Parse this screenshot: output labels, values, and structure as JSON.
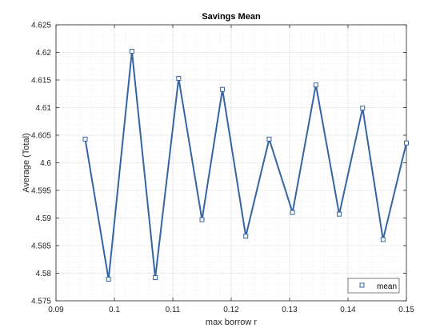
{
  "chart_data": {
    "type": "line",
    "title": "Savings Mean",
    "xlabel": "max borrow r",
    "ylabel": "Average (Total)",
    "xlim": [
      0.09,
      0.15
    ],
    "ylim": [
      4.575,
      4.625
    ],
    "xticks": [
      0.09,
      0.1,
      0.11,
      0.12,
      0.13,
      0.14,
      0.15
    ],
    "xtick_labels": [
      "0.09",
      "0.1",
      "0.11",
      "0.12",
      "0.13",
      "0.14",
      "0.15"
    ],
    "yticks": [
      4.575,
      4.58,
      4.585,
      4.59,
      4.595,
      4.6,
      4.605,
      4.61,
      4.615,
      4.62,
      4.625
    ],
    "ytick_labels": [
      "4.575",
      "4.58",
      "4.585",
      "4.59",
      "4.595",
      "4.6",
      "4.605",
      "4.61",
      "4.615",
      "4.62",
      "4.625"
    ],
    "grid": true,
    "minor_grid": true,
    "legend_position": "bottom-right",
    "series": [
      {
        "name": "mean",
        "color": "#3465a4",
        "marker": "square",
        "x": [
          0.095,
          0.099,
          0.103,
          0.107,
          0.111,
          0.115,
          0.1185,
          0.1225,
          0.1265,
          0.1305,
          0.1345,
          0.1385,
          0.1425,
          0.146,
          0.15
        ],
        "y": [
          4.6043,
          4.5789,
          4.6202,
          4.5792,
          4.6153,
          4.5897,
          4.6133,
          4.5867,
          4.6043,
          4.591,
          4.6141,
          4.5907,
          4.6099,
          4.5861,
          4.6036
        ]
      }
    ]
  }
}
